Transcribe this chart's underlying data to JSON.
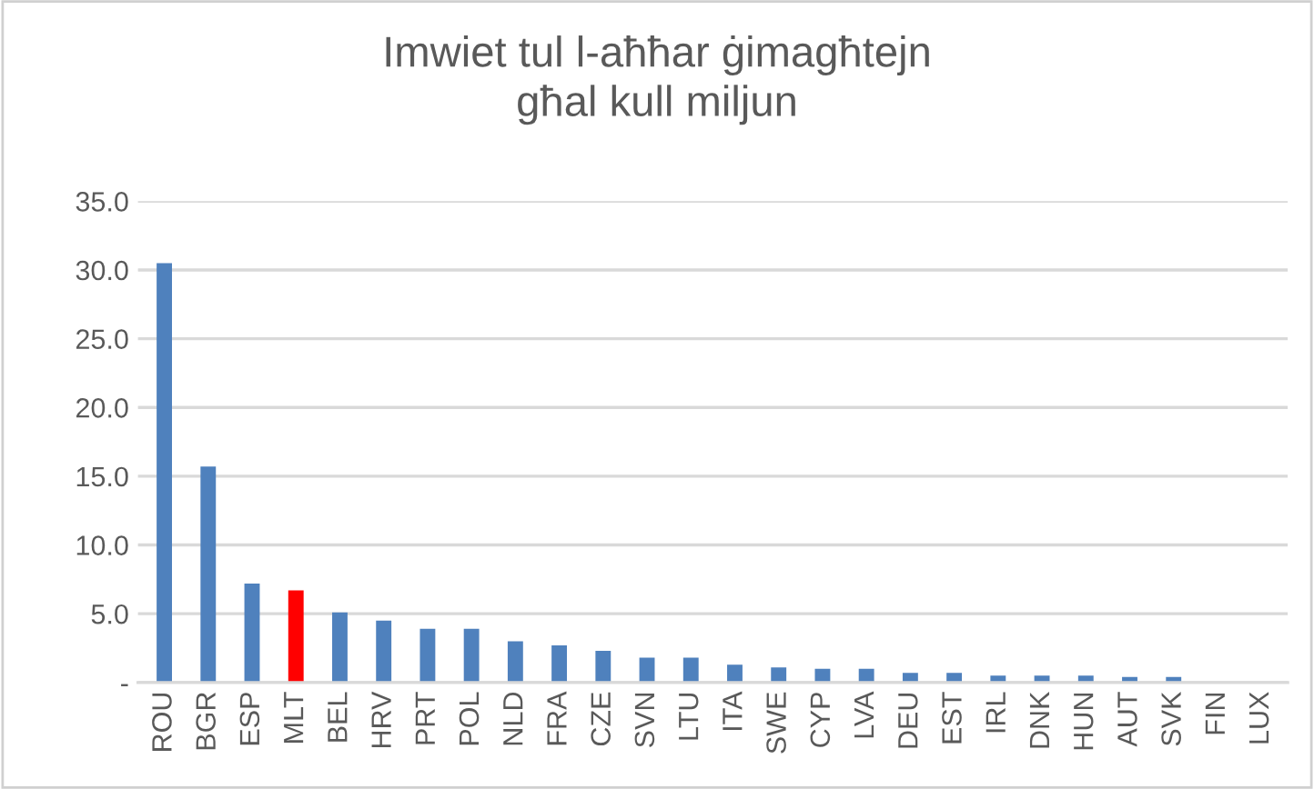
{
  "chart_data": {
    "type": "bar",
    "title": "Imwiet tul l-aħħar ġimagħtejn\ngħal kull miljun",
    "categories": [
      "ROU",
      "BGR",
      "ESP",
      "MLT",
      "BEL",
      "HRV",
      "PRT",
      "POL",
      "NLD",
      "FRA",
      "CZE",
      "SVN",
      "LTU",
      "ITA",
      "SWE",
      "CYP",
      "LVA",
      "DEU",
      "EST",
      "IRL",
      "DNK",
      "HUN",
      "AUT",
      "SVK",
      "FIN",
      "LUX"
    ],
    "values": [
      30.5,
      15.7,
      7.2,
      6.7,
      5.1,
      4.5,
      3.9,
      3.9,
      3.0,
      2.7,
      2.3,
      1.8,
      1.8,
      1.3,
      1.1,
      1.0,
      1.0,
      0.7,
      0.7,
      0.5,
      0.5,
      0.5,
      0.4,
      0.4,
      0,
      0
    ],
    "colors": [
      "#4f81bd",
      "#4f81bd",
      "#4f81bd",
      "#ff0000",
      "#4f81bd",
      "#4f81bd",
      "#4f81bd",
      "#4f81bd",
      "#4f81bd",
      "#4f81bd",
      "#4f81bd",
      "#4f81bd",
      "#4f81bd",
      "#4f81bd",
      "#4f81bd",
      "#4f81bd",
      "#4f81bd",
      "#4f81bd",
      "#4f81bd",
      "#4f81bd",
      "#4f81bd",
      "#4f81bd",
      "#4f81bd",
      "#4f81bd",
      "#4f81bd",
      "#4f81bd"
    ],
    "ylim": [
      0,
      35
    ],
    "yticks": [
      {
        "value": 0,
        "label": "-"
      },
      {
        "value": 5,
        "label": "5.0"
      },
      {
        "value": 10,
        "label": "10.0"
      },
      {
        "value": 15,
        "label": "15.0"
      },
      {
        "value": 20,
        "label": "20.0"
      },
      {
        "value": 25,
        "label": "25.0"
      },
      {
        "value": 30,
        "label": "30.0"
      },
      {
        "value": 35,
        "label": "35.0"
      }
    ],
    "grid": "y"
  }
}
